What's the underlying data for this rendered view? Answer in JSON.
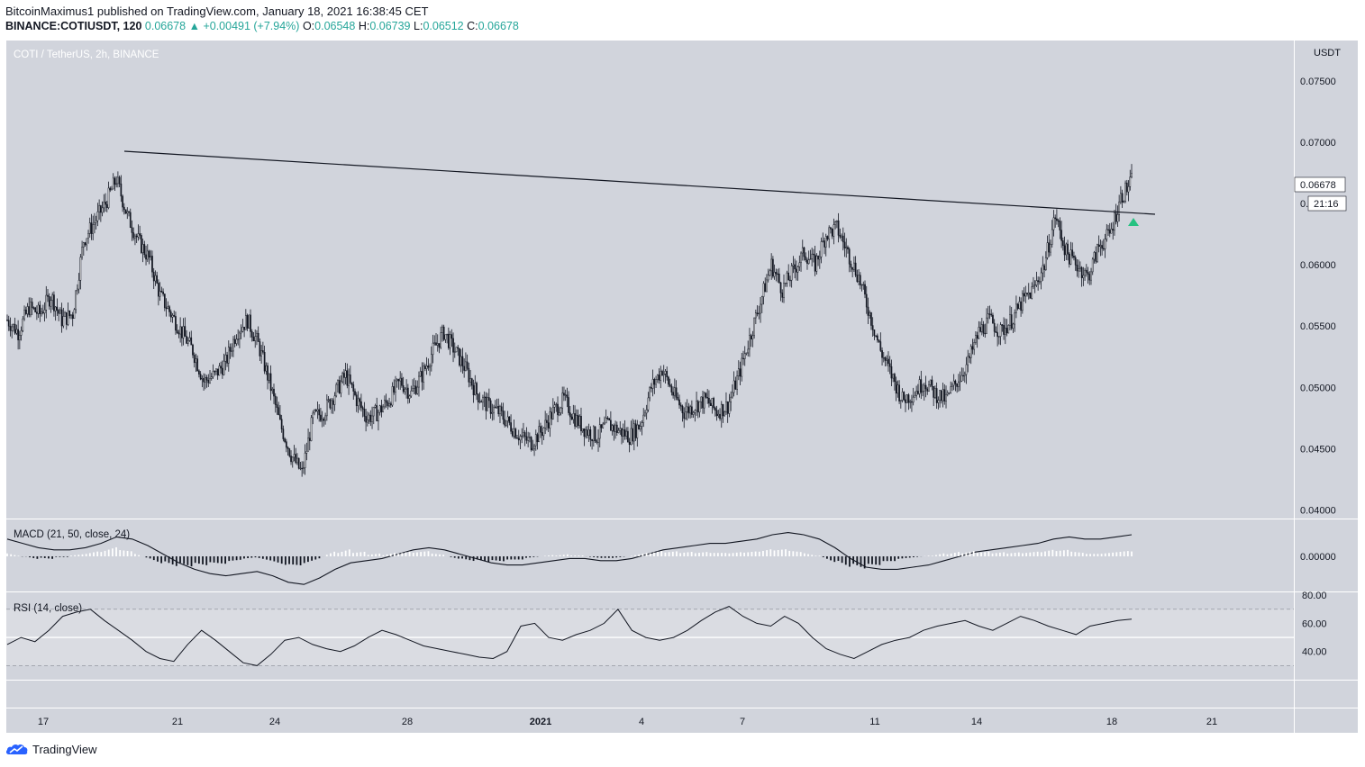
{
  "header": {
    "author": "BitcoinMaximus1",
    "published_text": "published on TradingView.com, January 18, 2021 16:38:45 CET",
    "symbol": "BINANCE:COTIUSDT, 120",
    "last": "0.06678",
    "change": "+0.00491 (+7.94%)",
    "open_label": "O:",
    "open": "0.06548",
    "high_label": "H:",
    "high": "0.06739",
    "low_label": "L:",
    "low": "0.06512",
    "close_label": "C:",
    "close": "0.06678",
    "up_color": "#26a69a"
  },
  "footer": {
    "brand": "TradingView",
    "logo_icon": "tradingview-cloud-icon"
  },
  "chart_data": [
    {
      "type": "candlestick",
      "title": "COTI / TetherUS, 2h, BINANCE",
      "y_unit": "USDT",
      "yticks": [
        "0.04000",
        "0.04500",
        "0.05000",
        "0.05500",
        "0.06000",
        "0.06500",
        "0.07000",
        "0.07500"
      ],
      "ylim": [
        0.0393,
        0.0783
      ],
      "xticks": [
        "17",
        "21",
        "24",
        "28",
        "2021",
        "4",
        "7",
        "11",
        "14",
        "18",
        "21"
      ],
      "last_price_label": "0.06678",
      "countdown_label": "21:16",
      "trendline": {
        "from": [
          "Dec 19",
          0.0695
        ],
        "to": [
          "Jan 18",
          0.064
        ]
      },
      "breakout_marker": {
        "shape": "up-triangle",
        "color": "#26c281"
      },
      "closes_approx": [
        0.0555,
        0.0545,
        0.0565,
        0.056,
        0.0575,
        0.0555,
        0.056,
        0.062,
        0.0635,
        0.065,
        0.067,
        0.064,
        0.062,
        0.0605,
        0.0575,
        0.056,
        0.0545,
        0.053,
        0.0505,
        0.051,
        0.052,
        0.0545,
        0.0555,
        0.0535,
        0.0505,
        0.047,
        0.0445,
        0.043,
        0.0475,
        0.048,
        0.0495,
        0.051,
        0.049,
        0.0475,
        0.048,
        0.049,
        0.0505,
        0.0495,
        0.051,
        0.053,
        0.0545,
        0.053,
        0.0515,
        0.0495,
        0.0485,
        0.048,
        0.047,
        0.046,
        0.0455,
        0.0465,
        0.048,
        0.049,
        0.0475,
        0.0465,
        0.046,
        0.047,
        0.0465,
        0.046,
        0.047,
        0.05,
        0.0515,
        0.0495,
        0.048,
        0.0485,
        0.049,
        0.048,
        0.0485,
        0.051,
        0.054,
        0.057,
        0.06,
        0.058,
        0.0595,
        0.061,
        0.06,
        0.0625,
        0.063,
        0.061,
        0.059,
        0.056,
        0.053,
        0.051,
        0.049,
        0.0495,
        0.0505,
        0.0495,
        0.049,
        0.0505,
        0.052,
        0.0545,
        0.0555,
        0.0545,
        0.0555,
        0.057,
        0.058,
        0.06,
        0.064,
        0.061,
        0.06,
        0.059,
        0.0615,
        0.0625,
        0.0655,
        0.0668
      ]
    },
    {
      "type": "macd",
      "title": "MACD (21, 50, close, 24)",
      "ytick": "0.00000",
      "line_approx": [
        0.8,
        0.6,
        0.4,
        0.3,
        0.3,
        0.4,
        0.6,
        0.9,
        0.8,
        0.5,
        0.1,
        -0.3,
        -0.6,
        -0.8,
        -0.9,
        -0.8,
        -0.7,
        -0.9,
        -1.2,
        -1.3,
        -1.0,
        -0.6,
        -0.3,
        -0.2,
        -0.1,
        0.1,
        0.3,
        0.4,
        0.3,
        0.1,
        -0.1,
        -0.3,
        -0.4,
        -0.4,
        -0.3,
        -0.2,
        -0.1,
        -0.1,
        -0.2,
        -0.2,
        -0.1,
        0.1,
        0.3,
        0.4,
        0.5,
        0.6,
        0.6,
        0.7,
        0.8,
        1.0,
        1.1,
        1.0,
        0.8,
        0.4,
        -0.1,
        -0.5,
        -0.6,
        -0.6,
        -0.5,
        -0.4,
        -0.2,
        0.0,
        0.2,
        0.3,
        0.4,
        0.5,
        0.6,
        0.8,
        0.9,
        0.8,
        0.8,
        0.9,
        1.0
      ]
    },
    {
      "type": "rsi",
      "title": "RSI (14, close)",
      "yticks": [
        "40.00",
        "60.00",
        "80.00"
      ],
      "ylim": [
        20,
        82
      ],
      "values_approx": [
        45,
        50,
        47,
        55,
        65,
        68,
        70,
        62,
        55,
        48,
        40,
        35,
        33,
        45,
        55,
        48,
        40,
        32,
        30,
        38,
        48,
        50,
        45,
        42,
        40,
        44,
        50,
        55,
        52,
        48,
        44,
        42,
        40,
        38,
        36,
        35,
        40,
        58,
        60,
        50,
        48,
        52,
        55,
        60,
        70,
        55,
        50,
        48,
        50,
        55,
        62,
        68,
        72,
        65,
        60,
        58,
        65,
        60,
        50,
        42,
        38,
        35,
        40,
        45,
        48,
        50,
        55,
        58,
        60,
        62,
        58,
        55,
        60,
        65,
        62,
        58,
        55,
        52,
        58,
        60,
        62,
        63
      ]
    }
  ]
}
